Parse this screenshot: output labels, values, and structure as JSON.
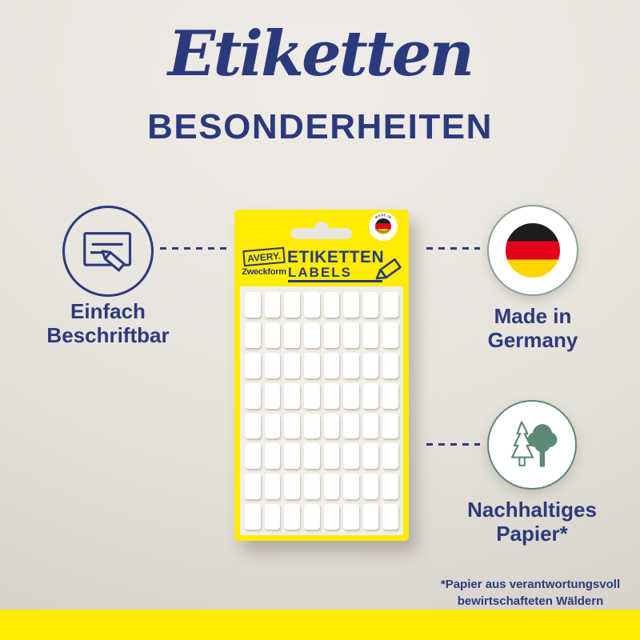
{
  "colors": {
    "navy": "#2b3a7d",
    "yellow": "#ffec00",
    "background": "#e8e4de",
    "sheet": "#f2efe8",
    "green": "#5d8977",
    "green_light": "#87a294",
    "flag_black": "#1d1d1b",
    "flag_red": "#e2001a",
    "flag_gold": "#ffd500"
  },
  "header": {
    "title": "Etiketten",
    "subtitle": "BESONDERHEITEN"
  },
  "package": {
    "brand": {
      "name": "AVERY.",
      "sub": "Zweckform"
    },
    "title": "ETIKETTEN",
    "subtitle": "LABELS",
    "badge": {
      "top": "MADE IN",
      "bottom": "GERMANY"
    },
    "label_grid": {
      "rows": 8,
      "columns": 8
    }
  },
  "features": {
    "writable": {
      "line1": "Einfach",
      "line2": "Beschriftbar"
    },
    "origin": {
      "line1": "Made in",
      "line2": "Germany"
    },
    "paper": {
      "line1": "Nachhaltiges",
      "line2": "Papier*"
    }
  },
  "footnote": {
    "line1": "*Papier aus verantwortungsvoll",
    "line2": "bewirtschafteten Wäldern"
  }
}
